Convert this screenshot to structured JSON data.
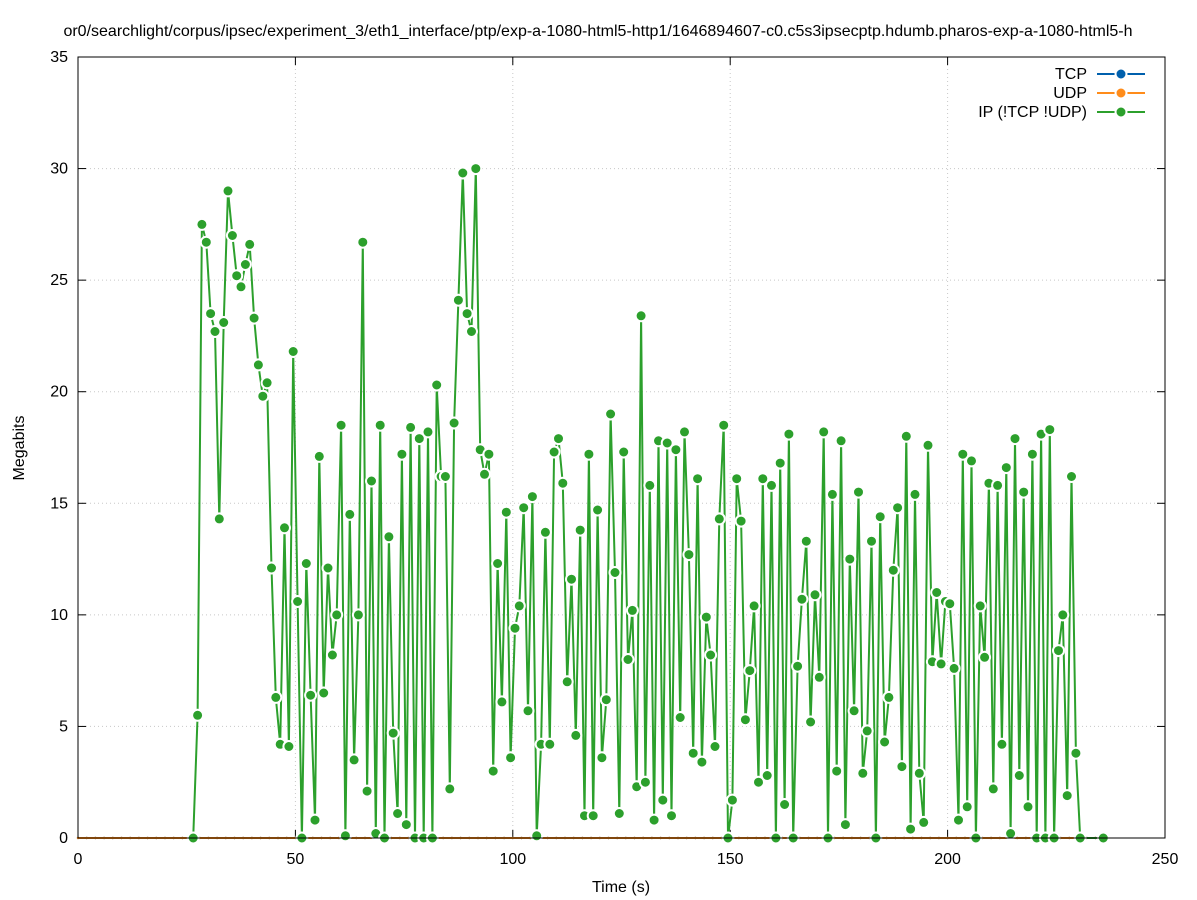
{
  "chart_data": {
    "type": "line",
    "title": "or0/searchlight/corpus/ipsec/experiment_3/eth1_interface/ptp/exp-a-1080-html5-http1/1646894607-c0.c5s3ipsecptp.hdumb.pharos-exp-a-1080-html5-h",
    "xlabel": "Time (s)",
    "ylabel": "Megabits",
    "xlim": [
      0,
      250
    ],
    "ylim": [
      0,
      35
    ],
    "xticks": [
      0,
      50,
      100,
      150,
      200,
      250
    ],
    "yticks": [
      0,
      5,
      10,
      15,
      20,
      25,
      30,
      35
    ],
    "grid": true,
    "legend_position": "top-right",
    "series": [
      {
        "name": "TCP",
        "color": "#0060ad",
        "x": [
          0,
          2,
          4,
          6,
          8,
          10,
          12,
          14,
          16,
          18,
          20,
          22,
          24,
          26,
          28,
          30,
          32,
          34,
          36,
          38,
          40,
          42,
          44,
          46,
          48,
          50,
          52,
          54,
          56,
          58,
          60,
          62,
          64,
          66,
          68,
          70,
          72,
          74,
          76,
          78,
          80,
          82,
          84,
          86,
          88,
          90,
          92,
          94,
          96,
          98,
          100,
          102,
          104,
          106,
          108,
          110,
          112,
          114,
          116,
          118,
          120,
          122,
          124,
          126,
          128,
          130,
          132,
          134,
          136,
          138,
          140,
          142,
          144,
          146,
          148,
          150,
          152,
          154,
          156,
          158,
          160,
          162,
          164,
          166,
          168,
          170,
          172,
          174,
          176,
          178,
          180,
          182,
          184,
          186,
          188,
          190,
          192,
          194,
          196,
          198,
          200,
          202,
          204,
          206,
          208,
          210,
          212,
          214,
          216,
          218,
          220,
          222,
          224,
          226,
          228,
          230,
          232,
          234,
          236
        ],
        "y": [
          0,
          0,
          0,
          0,
          0,
          0,
          0,
          0,
          0,
          0,
          0,
          0,
          0,
          0,
          0,
          0,
          0,
          0,
          0,
          0,
          0,
          0,
          0,
          0,
          0,
          0,
          0,
          0,
          0,
          0,
          0,
          0,
          0,
          0,
          0,
          0,
          0,
          0,
          0,
          0,
          0,
          0,
          0,
          0,
          0,
          0,
          0,
          0,
          0,
          0,
          0,
          0,
          0,
          0,
          0,
          0,
          0,
          0,
          0,
          0,
          0,
          0,
          0,
          0,
          0,
          0,
          0,
          0,
          0,
          0,
          0,
          0,
          0,
          0,
          0,
          0,
          0,
          0,
          0,
          0,
          0,
          0,
          0,
          0,
          0,
          0,
          0,
          0,
          0,
          0,
          0,
          0,
          0,
          0,
          0,
          0,
          0,
          0,
          0,
          0,
          0,
          0,
          0,
          0,
          0,
          0,
          0,
          0,
          0,
          0,
          0,
          0,
          0,
          0,
          0,
          0,
          0,
          0,
          0
        ]
      },
      {
        "name": "UDP",
        "color": "#ff8c1a",
        "x": [
          0,
          2,
          4,
          6,
          8,
          10,
          12,
          14,
          16,
          18,
          20,
          22,
          24,
          26,
          28,
          30,
          32,
          34,
          36,
          38,
          40,
          42,
          44,
          46,
          48,
          50,
          52,
          54,
          56,
          58,
          60,
          62,
          64,
          66,
          68,
          70,
          72,
          74,
          76,
          78,
          80,
          82,
          84,
          86,
          88,
          90,
          92,
          94,
          96,
          98,
          100,
          102,
          104,
          106,
          108,
          110,
          112,
          114,
          116,
          118,
          120,
          122,
          124,
          126,
          128,
          130,
          132,
          134,
          136,
          138,
          140,
          142,
          144,
          146,
          148,
          150,
          152,
          154,
          156,
          158,
          160,
          162,
          164,
          166,
          168,
          170,
          172,
          174,
          176,
          178,
          180,
          182,
          184,
          186,
          188,
          190,
          192,
          194,
          196,
          198,
          200,
          202,
          204,
          206,
          208,
          210,
          212,
          214,
          216,
          218,
          220,
          222,
          224,
          226,
          228,
          230,
          232,
          234,
          236
        ],
        "y": [
          0,
          0,
          0,
          0,
          0,
          0,
          0,
          0,
          0,
          0,
          0,
          0,
          0,
          0,
          0,
          0,
          0,
          0,
          0,
          0,
          0,
          0,
          0,
          0,
          0,
          0,
          0,
          0,
          0,
          0,
          0,
          0,
          0,
          0,
          0,
          0,
          0,
          0,
          0,
          0,
          0,
          0,
          0,
          0,
          0,
          0,
          0,
          0,
          0,
          0,
          0,
          0,
          0,
          0,
          0,
          0,
          0,
          0,
          0,
          0,
          0,
          0,
          0,
          0,
          0,
          0,
          0,
          0,
          0,
          0,
          0,
          0,
          0,
          0,
          0,
          0,
          0,
          0,
          0,
          0,
          0,
          0,
          0,
          0,
          0,
          0,
          0,
          0,
          0,
          0,
          0,
          0,
          0,
          0,
          0,
          0,
          0,
          0,
          0,
          0,
          0,
          0,
          0,
          0,
          0,
          0,
          0,
          0,
          0,
          0,
          0,
          0,
          0,
          0,
          0,
          0,
          0,
          0,
          0
        ]
      },
      {
        "name": "IP (!TCP  !UDP)",
        "color": "#2ca02c",
        "x": [
          26.5,
          27.5,
          28.5,
          29.5,
          30.5,
          31.5,
          32.5,
          33.5,
          34.5,
          35.5,
          36.5,
          37.5,
          38.5,
          39.5,
          40.5,
          41.5,
          42.5,
          43.5,
          44.5,
          45.5,
          46.5,
          47.5,
          48.5,
          49.5,
          50.5,
          51.5,
          52.5,
          53.5,
          54.5,
          55.5,
          56.5,
          57.5,
          58.5,
          59.5,
          60.5,
          61.5,
          62.5,
          63.5,
          64.5,
          65.5,
          66.5,
          67.5,
          68.5,
          69.5,
          70.5,
          71.5,
          72.5,
          73.5,
          74.5,
          75.5,
          76.5,
          77.5,
          78.5,
          79.5,
          80.5,
          81.5,
          82.5,
          83.5,
          84.5,
          85.5,
          86.5,
          87.5,
          88.5,
          89.5,
          90.5,
          91.5,
          92.5,
          93.5,
          94.5,
          95.5,
          96.5,
          97.5,
          98.5,
          99.5,
          100.5,
          101.5,
          102.5,
          103.5,
          104.5,
          105.5,
          106.5,
          107.5,
          108.5,
          109.5,
          110.5,
          111.5,
          112.5,
          113.5,
          114.5,
          115.5,
          116.5,
          117.5,
          118.5,
          119.5,
          120.5,
          121.5,
          122.5,
          123.5,
          124.5,
          125.5,
          126.5,
          127.5,
          128.5,
          129.5,
          130.5,
          131.5,
          132.5,
          133.5,
          134.5,
          135.5,
          136.5,
          137.5,
          138.5,
          139.5,
          140.5,
          141.5,
          142.5,
          143.5,
          144.5,
          145.5,
          146.5,
          147.5,
          148.5,
          149.5,
          150.5,
          151.5,
          152.5,
          153.5,
          154.5,
          155.5,
          156.5,
          157.5,
          158.5,
          159.5,
          160.5,
          161.5,
          162.5,
          163.5,
          164.5,
          165.5,
          166.5,
          167.5,
          168.5,
          169.5,
          170.5,
          171.5,
          172.5,
          173.5,
          174.5,
          175.5,
          176.5,
          177.5,
          178.5,
          179.5,
          180.5,
          181.5,
          182.5,
          183.5,
          184.5,
          185.5,
          186.5,
          187.5,
          188.5,
          189.5,
          190.5,
          191.5,
          192.5,
          193.5,
          194.5,
          195.5,
          196.5,
          197.5,
          198.5,
          199.5,
          200.5,
          201.5,
          202.5,
          203.5,
          204.5,
          205.5,
          206.5,
          207.5,
          208.5,
          209.5,
          210.5,
          211.5,
          212.5,
          213.5,
          214.5,
          215.5,
          216.5,
          217.5,
          218.5,
          219.5,
          220.5,
          221.5,
          222.5,
          223.5,
          224.5,
          225.5,
          226.5,
          227.5,
          228.5,
          229.5,
          230.5,
          235.8
        ],
        "y": [
          0.0,
          5.5,
          27.5,
          26.7,
          23.5,
          22.7,
          14.3,
          23.1,
          29.0,
          27.0,
          25.2,
          24.7,
          25.7,
          26.6,
          23.3,
          21.2,
          19.8,
          20.4,
          12.1,
          6.3,
          4.2,
          13.9,
          4.1,
          21.8,
          10.6,
          0.0,
          12.3,
          6.4,
          0.8,
          17.1,
          6.5,
          12.1,
          8.2,
          10.0,
          18.5,
          0.1,
          14.5,
          3.5,
          10.0,
          26.7,
          2.1,
          16.0,
          0.2,
          18.5,
          0.0,
          13.5,
          4.7,
          1.1,
          17.2,
          0.6,
          18.4,
          0.0,
          17.9,
          0.0,
          18.2,
          0.0,
          20.3,
          16.2,
          16.2,
          2.2,
          18.6,
          24.1,
          29.8,
          23.5,
          22.7,
          30.0,
          17.4,
          16.3,
          17.2,
          3.0,
          12.3,
          6.1,
          14.6,
          3.6,
          9.4,
          10.4,
          14.8,
          5.7,
          15.3,
          0.1,
          4.2,
          13.7,
          4.2,
          17.3,
          17.9,
          15.9,
          7.0,
          11.6,
          4.6,
          13.8,
          1.0,
          17.2,
          1.0,
          14.7,
          3.6,
          6.2,
          19.0,
          11.9,
          1.1,
          17.3,
          8.0,
          10.2,
          2.3,
          23.4,
          2.5,
          15.8,
          0.8,
          17.8,
          1.7,
          17.7,
          1.0,
          17.4,
          5.4,
          18.2,
          12.7,
          3.8,
          16.1,
          3.4,
          9.9,
          8.2,
          4.1,
          14.3,
          18.5,
          0.0,
          1.7,
          16.1,
          14.2,
          5.3,
          7.5,
          10.4,
          2.5,
          16.1,
          2.8,
          15.8,
          0.0,
          16.8,
          1.5,
          18.1,
          0.0,
          7.7,
          10.7,
          13.3,
          5.2,
          10.9,
          7.2,
          18.2,
          0.0,
          15.4,
          3.0,
          17.8,
          0.6,
          12.5,
          5.7,
          15.5,
          2.9,
          4.8,
          13.3,
          0.0,
          14.4,
          4.3,
          6.3,
          12.0,
          14.8,
          3.2,
          18.0,
          0.4,
          15.4,
          2.9,
          0.7,
          17.6,
          7.9,
          11.0,
          7.8,
          10.6,
          10.5,
          7.6,
          0.8,
          17.2,
          1.4,
          16.9,
          0.0,
          10.4,
          8.1,
          15.9,
          2.2,
          15.8,
          4.2,
          16.6,
          0.2,
          17.9,
          2.8,
          15.5,
          1.4,
          17.2,
          0.0,
          18.1,
          0.0,
          18.3,
          0.0,
          8.4,
          10.0,
          1.9,
          16.2,
          3.8,
          0.0,
          0.0
        ]
      }
    ]
  }
}
